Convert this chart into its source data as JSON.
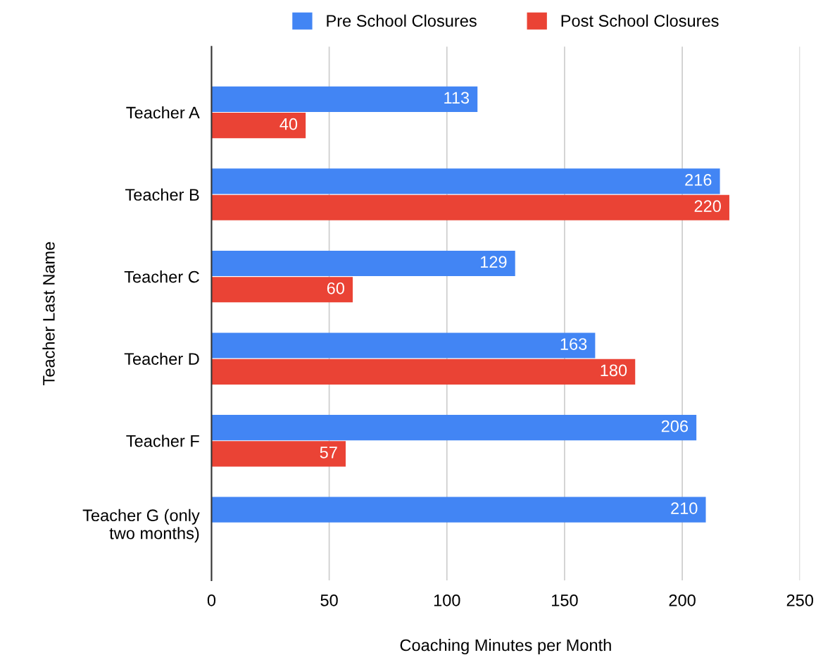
{
  "chart_data": {
    "type": "bar",
    "orientation": "horizontal",
    "xlabel": "Coaching Minutes per Month",
    "ylabel": "Teacher Last Name",
    "categories": [
      "Teacher A",
      "Teacher B",
      "Teacher C",
      "Teacher D",
      "Teacher F",
      "Teacher G (only\ntwo months)"
    ],
    "series": [
      {
        "name": "Pre School Closures",
        "color": "#4285f4",
        "values": [
          113,
          216,
          129,
          163,
          206,
          210
        ]
      },
      {
        "name": "Post School Closures",
        "color": "#ea4335",
        "values": [
          40,
          220,
          60,
          180,
          57,
          null
        ]
      }
    ],
    "xlim": [
      0,
      250
    ],
    "xticks": [
      0,
      50,
      100,
      150,
      200,
      250
    ],
    "grid": "x",
    "legend": "top",
    "data_labels": true
  }
}
